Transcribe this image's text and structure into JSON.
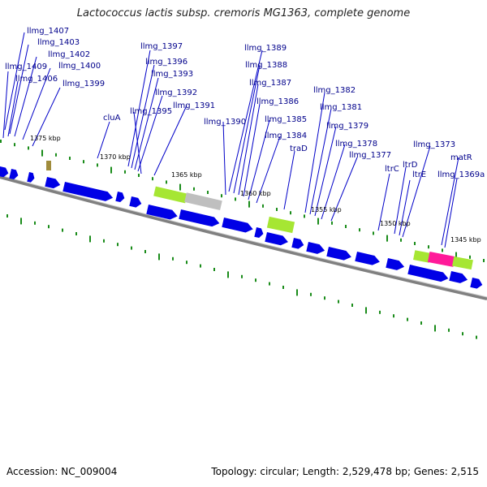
{
  "title": "Lactococcus lactis subsp. cremoris MG1363, complete genome",
  "footer": {
    "accession": "Accession: NC_009004",
    "summary": "Topology: circular; Length: 2,529,478 bp; Genes: 2,515"
  },
  "colors": {
    "gene": "#0000e6",
    "feature_green": "#a6e633",
    "feature_grey": "#bfbfbf",
    "feature_magenta": "#ff1a99",
    "tick_green": "#1a8c1a",
    "backbone": "#808080",
    "label": "#00008b"
  },
  "kbp_labels": [
    "1375 kbp",
    "1370 kbp",
    "1365 kbp",
    "1360 kbp",
    "1355 kbp",
    "1350 kbp",
    "1345 kbp"
  ],
  "gene_labels": [
    "llmg_1407",
    "llmg_1403",
    "llmg_1402",
    "llmg_1409",
    "llmg_1400",
    "llmg_1406",
    "llmg_1399",
    "cluA",
    "llmg_1397",
    "llmg_1396",
    "llmg_1393",
    "llmg_1392",
    "llmg_1395",
    "llmg_1391",
    "llmg_1389",
    "llmg_1388",
    "llmg_1387",
    "llmg_1390",
    "llmg_1386",
    "llmg_1385",
    "llmg_1384",
    "traD",
    "llmg_1382",
    "llmg_1381",
    "llmg_1379",
    "llmg_1378",
    "llmg_1377",
    "ltrC",
    "ltrD",
    "llmg_1373",
    "ltrE",
    "matR",
    "llmg_1369a"
  ]
}
